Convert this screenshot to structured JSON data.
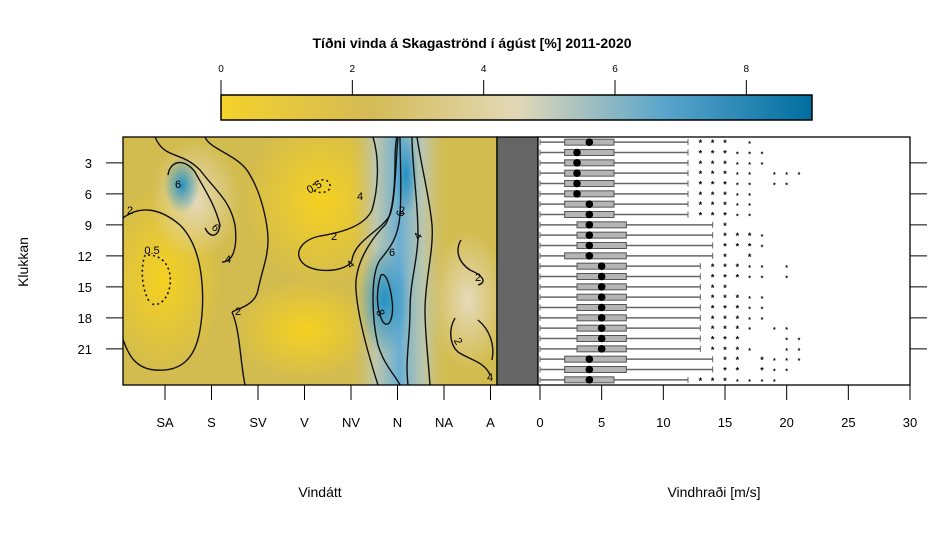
{
  "chart_data": [
    {
      "type": "heatmap",
      "title": "Tíðni vinda á Skagaströnd í ágúst [%] 2011-2020",
      "xlabel": "Vindátt",
      "ylabel": "Klukkan",
      "x_categories": [
        "SA",
        "S",
        "SV",
        "V",
        "NV",
        "N",
        "NA",
        "A"
      ],
      "y_ticks": [
        3,
        6,
        9,
        12,
        15,
        18,
        21
      ],
      "colorbar": {
        "ticks": [
          0,
          2,
          4,
          6,
          8
        ],
        "range": [
          0,
          9
        ],
        "colors": [
          "#f5d22b",
          "#d4bb55",
          "#e2d8b6",
          "#5aa5cc",
          "#006ea0"
        ]
      },
      "contour_labels": [
        "0.5",
        "0.5",
        "2",
        "2",
        "2",
        "2",
        "2",
        "2",
        "4",
        "4",
        "4",
        "4",
        "4",
        "6",
        "6",
        "6",
        "6",
        "8"
      ]
    },
    {
      "type": "boxplot",
      "xlabel": "Vindhraði [m/s]",
      "x_ticks": [
        0,
        5,
        10,
        15,
        20,
        25,
        30
      ],
      "xlim": [
        0,
        30
      ],
      "hours": [
        1,
        2,
        3,
        4,
        5,
        6,
        7,
        8,
        9,
        10,
        11,
        12,
        13,
        14,
        15,
        16,
        17,
        18,
        19,
        20,
        21,
        22,
        23,
        24
      ],
      "medians": [
        4,
        3,
        3,
        3,
        3,
        3,
        4,
        4,
        4,
        4,
        4,
        4,
        5,
        5,
        5,
        5,
        5,
        5,
        5,
        5,
        5,
        4,
        4,
        4
      ],
      "q1": [
        2,
        2,
        2,
        2,
        2,
        2,
        2,
        2,
        3,
        3,
        3,
        2,
        3,
        3,
        3,
        3,
        3,
        3,
        3,
        3,
        3,
        2,
        2,
        2
      ],
      "q3": [
        6,
        6,
        6,
        6,
        6,
        6,
        6,
        6,
        7,
        7,
        7,
        7,
        7,
        7,
        7,
        7,
        7,
        7,
        7,
        7,
        7,
        7,
        7,
        6
      ],
      "whisker_low": [
        0,
        0,
        0,
        0,
        0,
        0,
        0,
        0,
        0,
        0,
        0,
        0,
        0,
        0,
        0,
        0,
        0,
        0,
        0,
        0,
        0,
        0,
        0,
        0
      ],
      "whisker_high": [
        12,
        12,
        12,
        12,
        12,
        12,
        12,
        12,
        14,
        14,
        14,
        14,
        13,
        13,
        13,
        13,
        13,
        13,
        13,
        13,
        13,
        14,
        14,
        12
      ],
      "outliers": [
        [
          13,
          14,
          15,
          17
        ],
        [
          13,
          14,
          15,
          16,
          17,
          18
        ],
        [
          13,
          14,
          15,
          16,
          17,
          18
        ],
        [
          13,
          14,
          15,
          16,
          17,
          19,
          20,
          21
        ],
        [
          13,
          14,
          15,
          16,
          17,
          19,
          20
        ],
        [
          13,
          14,
          15,
          16,
          17
        ],
        [
          13,
          14,
          15,
          16,
          17
        ],
        [
          13,
          14,
          15,
          16,
          17
        ],
        [
          15
        ],
        [
          15,
          16,
          17,
          18
        ],
        [
          15,
          16,
          17,
          18
        ],
        [
          15,
          17
        ],
        [
          14,
          15,
          16,
          17,
          18,
          20
        ],
        [
          14,
          15,
          16,
          17,
          18,
          20
        ],
        [
          14,
          15
        ],
        [
          14,
          15,
          16,
          17,
          18
        ],
        [
          14,
          15,
          16,
          17,
          18
        ],
        [
          14,
          15,
          16,
          17,
          18
        ],
        [
          14,
          15,
          16,
          17,
          19,
          20
        ],
        [
          14,
          15,
          16,
          20,
          21
        ],
        [
          14,
          15,
          16,
          17,
          20,
          21
        ],
        [
          15,
          16,
          18,
          19,
          20,
          21
        ],
        [
          15,
          16,
          18,
          19,
          20
        ],
        [
          13,
          14,
          15,
          16,
          17,
          18,
          19
        ]
      ]
    }
  ]
}
